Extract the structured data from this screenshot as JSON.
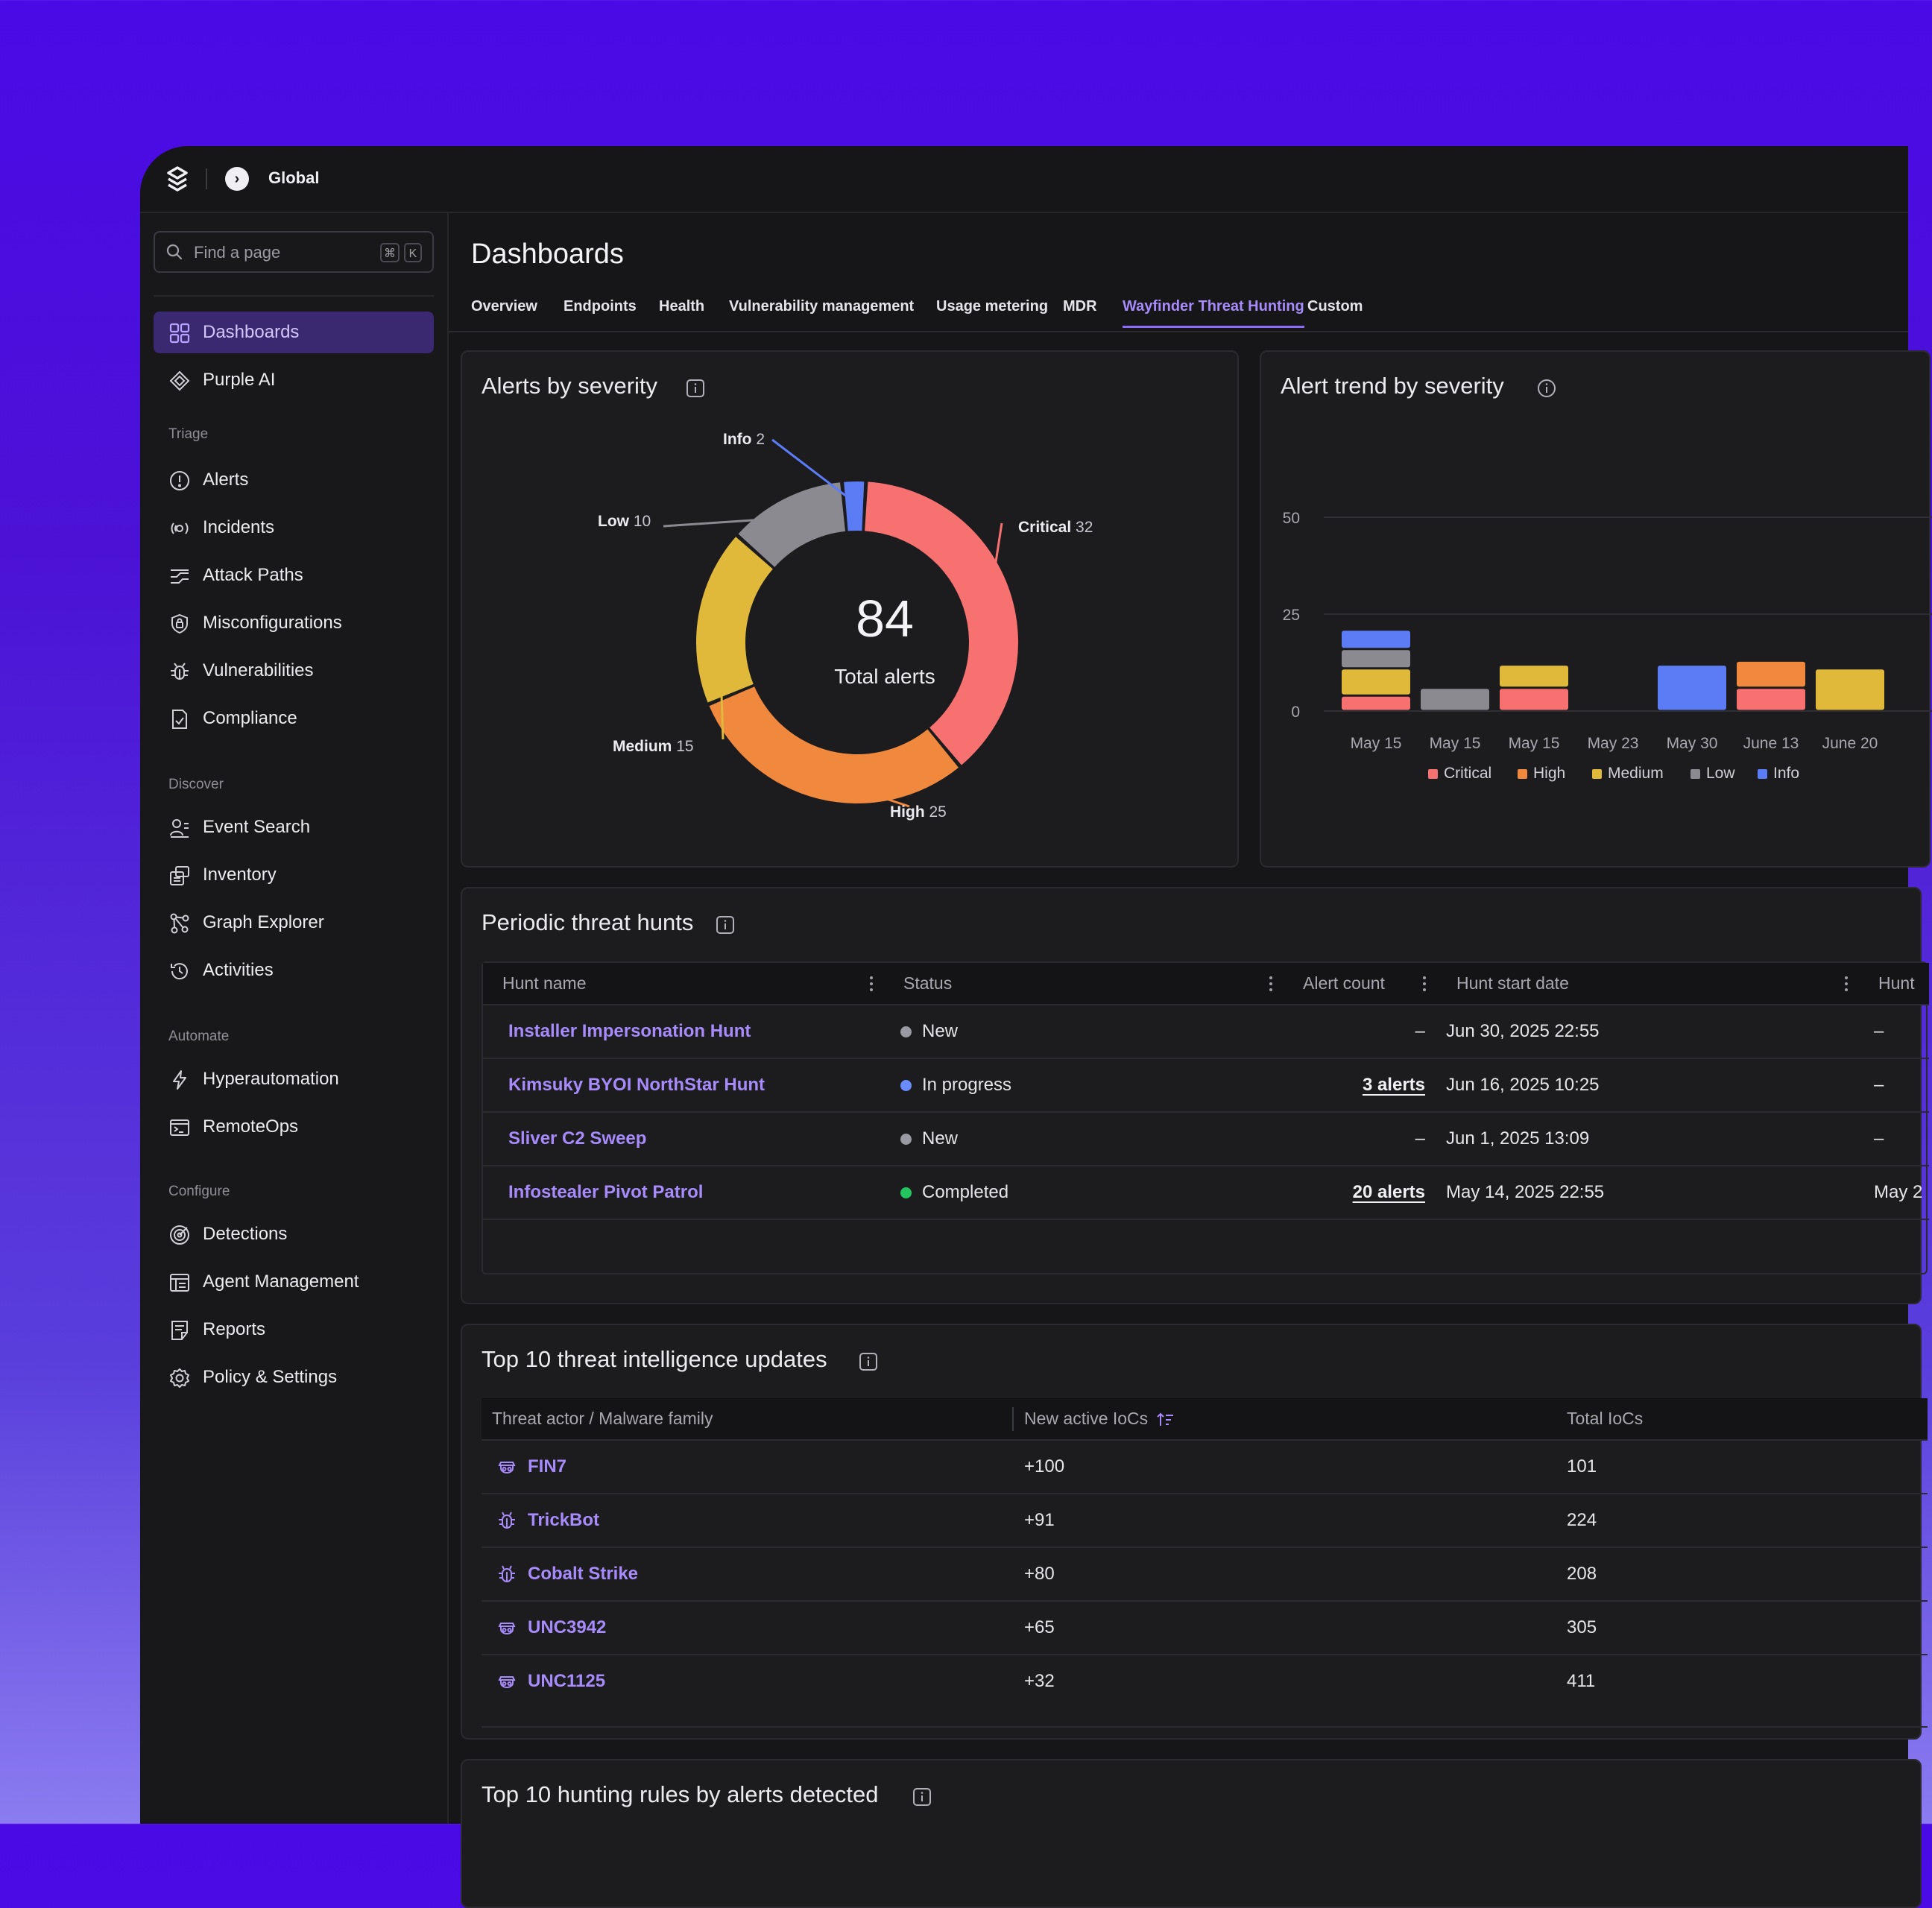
{
  "topbar": {
    "scope": "Global"
  },
  "sidebar": {
    "search_placeholder": "Find a page",
    "shortcut_cmd": "⌘",
    "shortcut_key": "K",
    "top_items": [
      {
        "label": "Dashboards",
        "icon": "grid-icon"
      },
      {
        "label": "Purple AI",
        "icon": "sparkle-icon"
      }
    ],
    "sections": [
      {
        "title": "Triage",
        "items": [
          {
            "label": "Alerts",
            "icon": "alert-icon"
          },
          {
            "label": "Incidents",
            "icon": "incident-icon"
          },
          {
            "label": "Attack Paths",
            "icon": "attack-path-icon"
          },
          {
            "label": "Misconfigurations",
            "icon": "lock-icon"
          },
          {
            "label": "Vulnerabilities",
            "icon": "bug-icon"
          },
          {
            "label": "Compliance",
            "icon": "compliance-icon"
          }
        ]
      },
      {
        "title": "Discover",
        "items": [
          {
            "label": "Event Search",
            "icon": "event-search-icon"
          },
          {
            "label": "Inventory",
            "icon": "inventory-icon"
          },
          {
            "label": "Graph Explorer",
            "icon": "graph-icon"
          },
          {
            "label": "Activities",
            "icon": "history-icon"
          }
        ]
      },
      {
        "title": "Automate",
        "items": [
          {
            "label": "Hyperautomation",
            "icon": "bolt-icon"
          },
          {
            "label": "RemoteOps",
            "icon": "terminal-icon"
          }
        ]
      },
      {
        "title": "Configure",
        "items": [
          {
            "label": "Detections",
            "icon": "detection-icon"
          },
          {
            "label": "Agent Management",
            "icon": "agent-icon"
          },
          {
            "label": "Reports",
            "icon": "report-icon"
          },
          {
            "label": "Policy & Settings",
            "icon": "gear-icon"
          }
        ]
      }
    ]
  },
  "main": {
    "title": "Dashboards",
    "tabs": [
      "Overview",
      "Endpoints",
      "Health",
      "Vulnerability management",
      "Usage metering",
      "MDR",
      "Wayfinder Threat Hunting",
      "Custom"
    ],
    "active_tab": "Wayfinder Threat Hunting"
  },
  "alerts_by_severity": {
    "title": "Alerts by severity",
    "total": "84",
    "total_label": "Total alerts"
  },
  "alert_trend": {
    "title": "Alert trend by severity"
  },
  "chart_data": [
    {
      "type": "pie",
      "title": "Alerts by severity",
      "labels": [
        "Critical",
        "High",
        "Medium",
        "Low",
        "Info"
      ],
      "values": [
        32,
        25,
        15,
        10,
        2
      ],
      "colors": [
        "#f87171",
        "#f0883e",
        "#e0b93a",
        "#8a8a90",
        "#5b7cf5"
      ],
      "donut": true,
      "center_value": 84,
      "center_label": "Total alerts"
    },
    {
      "type": "bar",
      "stacked": true,
      "title": "Alert trend by severity",
      "categories": [
        "May 15",
        "May 15",
        "May 15",
        "May 23",
        "May 30",
        "June 13",
        "June 20"
      ],
      "series": [
        {
          "name": "Critical",
          "color": "#f87171",
          "values": [
            4,
            0,
            6,
            0,
            0,
            6,
            0
          ]
        },
        {
          "name": "High",
          "color": "#f0883e",
          "values": [
            0,
            0,
            0,
            0,
            0,
            7,
            0
          ]
        },
        {
          "name": "Medium",
          "color": "#e0b93a",
          "values": [
            7,
            0,
            6,
            0,
            0,
            0,
            11
          ]
        },
        {
          "name": "Low",
          "color": "#8a8a90",
          "values": [
            5,
            6,
            0,
            0,
            0,
            0,
            0
          ]
        },
        {
          "name": "Info",
          "color": "#5b7cf5",
          "values": [
            5,
            0,
            0,
            0,
            12,
            0,
            0
          ]
        }
      ],
      "yticks": [
        0,
        25,
        50
      ],
      "ylim": [
        0,
        50
      ],
      "legend": "bottom"
    }
  ],
  "hunts": {
    "title": "Periodic threat hunts",
    "columns": [
      "Hunt name",
      "Status",
      "Alert count",
      "Hunt start date",
      "Hunt"
    ],
    "rows": [
      {
        "name": "Installer Impersonation Hunt",
        "status": "New",
        "status_color": "#9a9aa2",
        "alerts": "–",
        "start": "Jun 30, 2025 22:55",
        "extra": "–"
      },
      {
        "name": "Kimsuky BYOI NorthStar Hunt",
        "status": "In progress",
        "status_color": "#6b8cff",
        "alerts": "3 alerts",
        "start": "Jun 16, 2025 10:25",
        "extra": "–"
      },
      {
        "name": "Sliver C2 Sweep",
        "status": "New",
        "status_color": "#9a9aa2",
        "alerts": "–",
        "start": "Jun 1, 2025 13:09",
        "extra": "–"
      },
      {
        "name": "Infostealer Pivot Patrol",
        "status": "Completed",
        "status_color": "#22c55e",
        "alerts": "20 alerts",
        "start": "May 14, 2025 22:55",
        "extra": "May 2"
      }
    ]
  },
  "threat_intel": {
    "title": "Top 10 threat intelligence updates",
    "columns": [
      "Threat actor / Malware family",
      "New active IoCs",
      "Total IoCs"
    ],
    "rows": [
      {
        "name": "FIN7",
        "icon": "actor-icon",
        "new": "+100",
        "total": "101"
      },
      {
        "name": "TrickBot",
        "icon": "malware-icon",
        "new": "+91",
        "total": "224"
      },
      {
        "name": "Cobalt Strike",
        "icon": "malware-icon",
        "new": "+80",
        "total": "208"
      },
      {
        "name": "UNC3942",
        "icon": "actor-icon",
        "new": "+65",
        "total": "305"
      },
      {
        "name": "UNC1125",
        "icon": "actor-icon",
        "new": "+32",
        "total": "411"
      }
    ]
  },
  "hunting_rules": {
    "title": "Top 10 hunting rules by alerts detected"
  }
}
